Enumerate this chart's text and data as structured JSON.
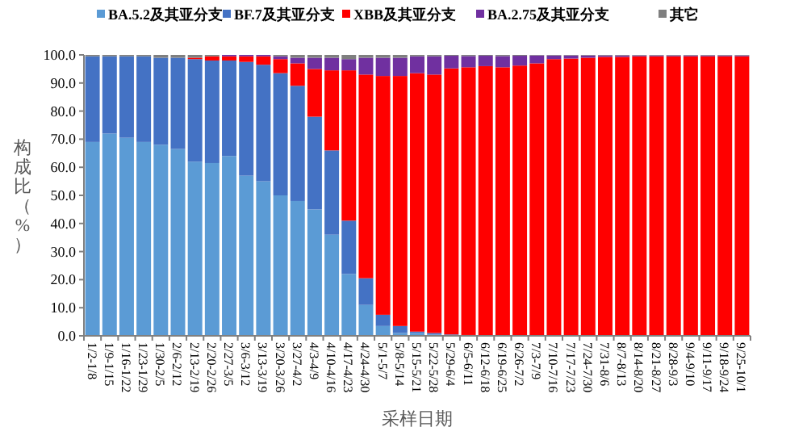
{
  "chart_data": {
    "type": "bar",
    "stacked": true,
    "xlabel": "采样日期",
    "ylabel": "构成比（%）",
    "categories": [
      "1/2-1/8",
      "1/9-1/15",
      "1/16-1/22",
      "1/23-1/29",
      "1/30-2/5",
      "2/6-2/12",
      "2/13-2/19",
      "2/20-2/26",
      "2/27-3/5",
      "3/6-3/12",
      "3/13-3/19",
      "3/20-3/26",
      "3/27-4/2",
      "4/3-4/9",
      "4/10-4/16",
      "4/17-4/23",
      "4/24-4/30",
      "5/1-5/7",
      "5/8-5/14",
      "5/15-5/21",
      "5/22-5/28",
      "5/29-6/4",
      "6/5-6/11",
      "6/12-6/18",
      "6/19-6/25",
      "6/26-7/2",
      "7/3-7/9",
      "7/10-7/16",
      "7/17-7/23",
      "7/24-7/30",
      "7/31-8/6",
      "8/7-8/13",
      "8/14-8/20",
      "8/21-8/27",
      "8/28-9/3",
      "9/4-9/10",
      "9/11-9/17",
      "9/18-9/24",
      "9/25-10/1"
    ],
    "series": [
      {
        "name": "BA.5.2及其亚分支",
        "color": "#5b9bd5",
        "values": [
          69,
          72,
          70.5,
          69,
          68,
          66.5,
          62,
          61.5,
          64,
          57,
          55,
          50,
          48,
          45,
          36,
          22,
          11,
          3.5,
          1,
          1,
          0.5,
          0.3,
          0,
          0,
          0,
          0,
          0,
          0,
          0,
          0,
          0,
          0,
          0,
          0,
          0,
          0,
          0,
          0,
          0
        ]
      },
      {
        "name": "BF.7及其亚分支",
        "color": "#4472c4",
        "values": [
          30.5,
          27.5,
          29,
          30.5,
          31,
          32.5,
          36.5,
          36.5,
          34,
          40.5,
          41.5,
          43.5,
          41,
          33,
          30,
          19,
          9.5,
          4,
          2.5,
          0.5,
          0.5,
          0.2,
          0.3,
          0.2,
          0.2,
          0.2,
          0.1,
          0,
          0,
          0,
          0,
          0,
          0,
          0,
          0,
          0,
          0,
          0,
          0
        ]
      },
      {
        "name": "XBB及其亚分支",
        "color": "#ff0000",
        "values": [
          0,
          0,
          0,
          0,
          0,
          0,
          0.5,
          1.5,
          1.5,
          2,
          3,
          5,
          8,
          17,
          28.5,
          53.5,
          72.5,
          85,
          89,
          92,
          92,
          94.7,
          95.3,
          95.8,
          95.4,
          96,
          96.9,
          98.5,
          98.7,
          99,
          99.3,
          99.3,
          99.5,
          99.5,
          99.5,
          99.5,
          99.5,
          99.5,
          99.5
        ]
      },
      {
        "name": "BA.2.75及其亚分支",
        "color": "#7030a0",
        "values": [
          0,
          0,
          0,
          0,
          0,
          0,
          0,
          0,
          0.5,
          0.5,
          0.5,
          1,
          2,
          4,
          4.5,
          4,
          6,
          6.5,
          6.5,
          6,
          6.5,
          4.5,
          4,
          3.7,
          4,
          3.5,
          2.8,
          1.3,
          1.1,
          0.8,
          0.5,
          0.5,
          0.3,
          0.3,
          0.3,
          0.3,
          0.3,
          0.3,
          0.3
        ]
      },
      {
        "name": "其它",
        "color": "#7f7f7f",
        "values": [
          0.5,
          0.5,
          0.5,
          0.5,
          1,
          1,
          1,
          0.5,
          0,
          0,
          0,
          0.5,
          1,
          1,
          1,
          1.5,
          1,
          1,
          1,
          0.5,
          0.5,
          0.3,
          0.4,
          0.3,
          0.4,
          0.3,
          0.2,
          0.2,
          0.2,
          0.2,
          0.2,
          0.2,
          0.2,
          0.2,
          0.2,
          0.2,
          0.2,
          0.2,
          0.2
        ]
      }
    ],
    "ylim": [
      0,
      100
    ],
    "yticks": [
      {
        "value": 0,
        "label": "0.0"
      },
      {
        "value": 10,
        "label": "10.0"
      },
      {
        "value": 20,
        "label": "20.0"
      },
      {
        "value": 30,
        "label": "30.0"
      },
      {
        "value": 40,
        "label": "40.0"
      },
      {
        "value": 50,
        "label": "50.0"
      },
      {
        "value": 60,
        "label": "60.0"
      },
      {
        "value": 70,
        "label": "70.0"
      },
      {
        "value": 80,
        "label": "80.0"
      },
      {
        "value": 90,
        "label": "90.0"
      },
      {
        "value": 100,
        "label": "100.0"
      }
    ],
    "legend": "top",
    "grid": false
  }
}
